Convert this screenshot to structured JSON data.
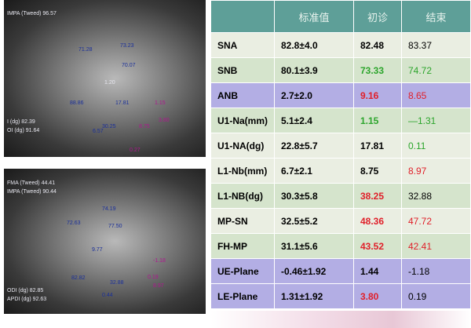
{
  "image_top": {
    "labels": [
      "IMPA (Tweed) 96.57",
      "71.28",
      "73.23",
      "70.07",
      "1.20",
      "88.86",
      "17.81",
      "30.25",
      "6.57",
      "I (dg) 82.39",
      "OI (dg) 91.64",
      "1.15",
      "8.75",
      "3.80",
      "0.27"
    ]
  },
  "image_bottom": {
    "labels": [
      "FMA (Tweed) 44.41",
      "IMPA (Tweed) 90.44",
      "74.19",
      "72.63",
      "77.50",
      "9.77",
      "82.82",
      "32.88",
      "0.44",
      "ODI (dg) 82.85",
      "APDI (dg) 92.63",
      "-1.18",
      "0.19",
      "8.97"
    ]
  },
  "table": {
    "header": [
      "标准值",
      "初诊",
      "结束"
    ],
    "rows": [
      [
        "SNA",
        "82.8±4.0",
        "82.48",
        "83.37"
      ],
      [
        "SNB",
        "80.1±3.9",
        "73.33",
        "74.72"
      ],
      [
        "ANB",
        "2.7±2.0",
        "9.16",
        "8.65"
      ],
      [
        "U1-Na(mm)",
        "5.1±2.4",
        "1.15",
        "—1.31"
      ],
      [
        "U1-NA(dg)",
        "22.8±5.7",
        "17.81",
        "0.11"
      ],
      [
        "L1-Nb(mm)",
        "6.7±2.1",
        "8.75",
        "8.97"
      ],
      [
        "L1-NB(dg)",
        "30.3±5.8",
        "38.25",
        "32.88"
      ],
      [
        "MP-SN",
        "32.5±5.2",
        "48.36",
        "47.72"
      ],
      [
        "FH-MP",
        "31.1±5.6",
        "43.52",
        "42.41"
      ],
      [
        "UE-Plane",
        "-0.46±1.92",
        "1.44",
        "-1.18"
      ],
      [
        "LE-Plane",
        "1.31±1.92",
        "3.80",
        "0.19"
      ]
    ]
  }
}
